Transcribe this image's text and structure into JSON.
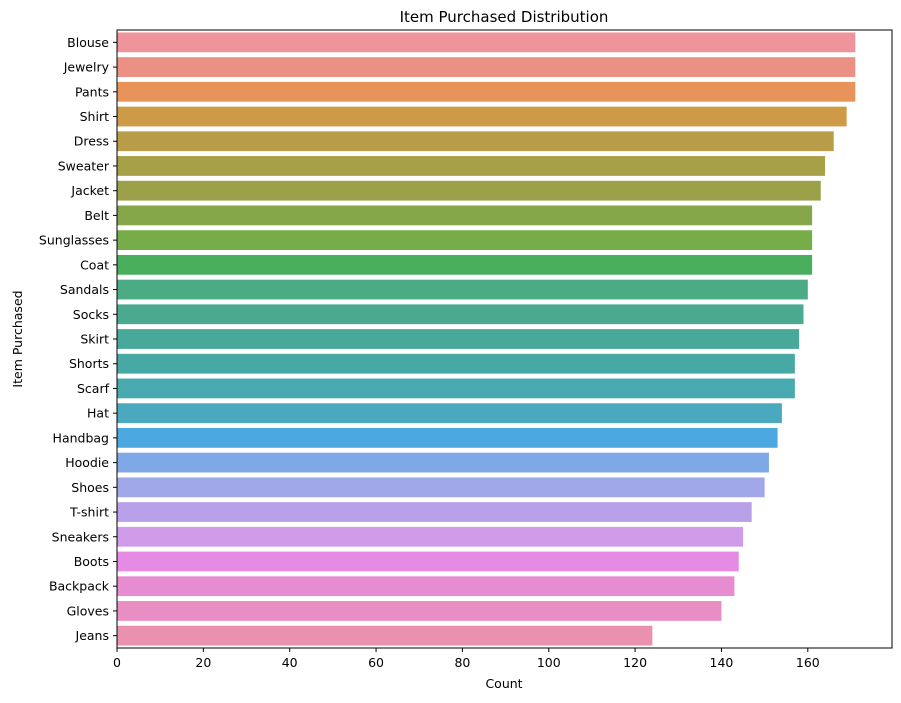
{
  "chart_data": {
    "type": "bar",
    "orientation": "horizontal",
    "title": "Item Purchased Distribution",
    "xlabel": "Count",
    "ylabel": "Item Purchased",
    "xlim": [
      0,
      179.5
    ],
    "xticks": [
      0,
      20,
      40,
      60,
      80,
      100,
      120,
      140,
      160
    ],
    "grid": false,
    "categories": [
      "Blouse",
      "Jewelry",
      "Pants",
      "Shirt",
      "Dress",
      "Sweater",
      "Jacket",
      "Belt",
      "Sunglasses",
      "Coat",
      "Sandals",
      "Socks",
      "Skirt",
      "Shorts",
      "Scarf",
      "Hat",
      "Handbag",
      "Hoodie",
      "Shoes",
      "T-shirt",
      "Sneakers",
      "Boots",
      "Backpack",
      "Gloves",
      "Jeans"
    ],
    "values": [
      171,
      171,
      171,
      169,
      166,
      164,
      163,
      161,
      161,
      161,
      160,
      159,
      158,
      157,
      157,
      154,
      153,
      151,
      150,
      147,
      145,
      144,
      143,
      140,
      124
    ],
    "colors": [
      "#f0949c",
      "#eb9183",
      "#e8935a",
      "#cd9a47",
      "#b89c48",
      "#a7a048",
      "#9ca149",
      "#86a749",
      "#76ad48",
      "#4aaf5d",
      "#4aab84",
      "#49aa90",
      "#48a99b",
      "#48a9a4",
      "#48a9af",
      "#4aa9bf",
      "#4ba8e0",
      "#7ea9e6",
      "#a1a8ea",
      "#b9a1ea",
      "#d09be9",
      "#e58be4",
      "#e68cd1",
      "#e88ec2",
      "#ea91b0"
    ]
  }
}
